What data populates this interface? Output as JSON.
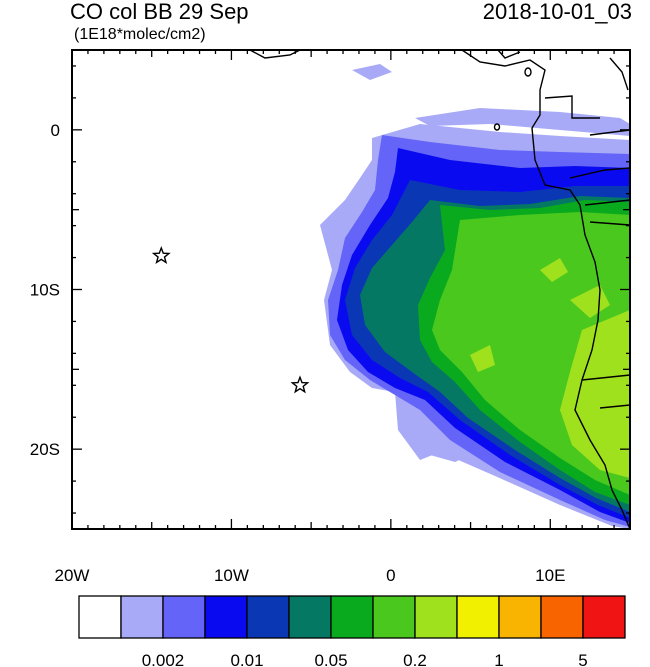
{
  "header": {
    "title": "CO col BB 29 Sep",
    "datetime": "2018-10-01_03",
    "units": "(1E18*molec/cm2)"
  },
  "chart_data": {
    "type": "heatmap",
    "title": "CO col BB 29 Sep",
    "subtitle": "(1E18*molec/cm2)",
    "timestamp": "2018-10-01_03",
    "xlim": [
      -20,
      15
    ],
    "ylim": [
      -25,
      5
    ],
    "x_ticks": [
      {
        "value": -20,
        "label": "20W"
      },
      {
        "value": -10,
        "label": "10W"
      },
      {
        "value": 0,
        "label": "0"
      },
      {
        "value": 10,
        "label": "10E"
      }
    ],
    "y_ticks": [
      {
        "value": 0,
        "label": "0"
      },
      {
        "value": -10,
        "label": "10S"
      },
      {
        "value": -20,
        "label": "20S"
      }
    ],
    "markers": [
      {
        "lon": -14.4,
        "lat": -7.9,
        "symbol": "star"
      },
      {
        "lon": -5.7,
        "lat": -16.0,
        "symbol": "star"
      }
    ],
    "colorbar": {
      "colors": [
        "#ffffff",
        "#a8aaf8",
        "#6464f8",
        "#0a0af0",
        "#0a37b4",
        "#057864",
        "#0aaa1e",
        "#4bc81e",
        "#a0e11e",
        "#f0f000",
        "#f8b400",
        "#f86400",
        "#f01414"
      ],
      "labels": [
        {
          "after_box": 2,
          "text": "0.002"
        },
        {
          "after_box": 4,
          "text": "0.01"
        },
        {
          "after_box": 6,
          "text": "0.05"
        },
        {
          "after_box": 8,
          "text": "0.2"
        },
        {
          "after_box": 10,
          "text": "1"
        },
        {
          "after_box": 12,
          "text": "5"
        }
      ]
    }
  }
}
